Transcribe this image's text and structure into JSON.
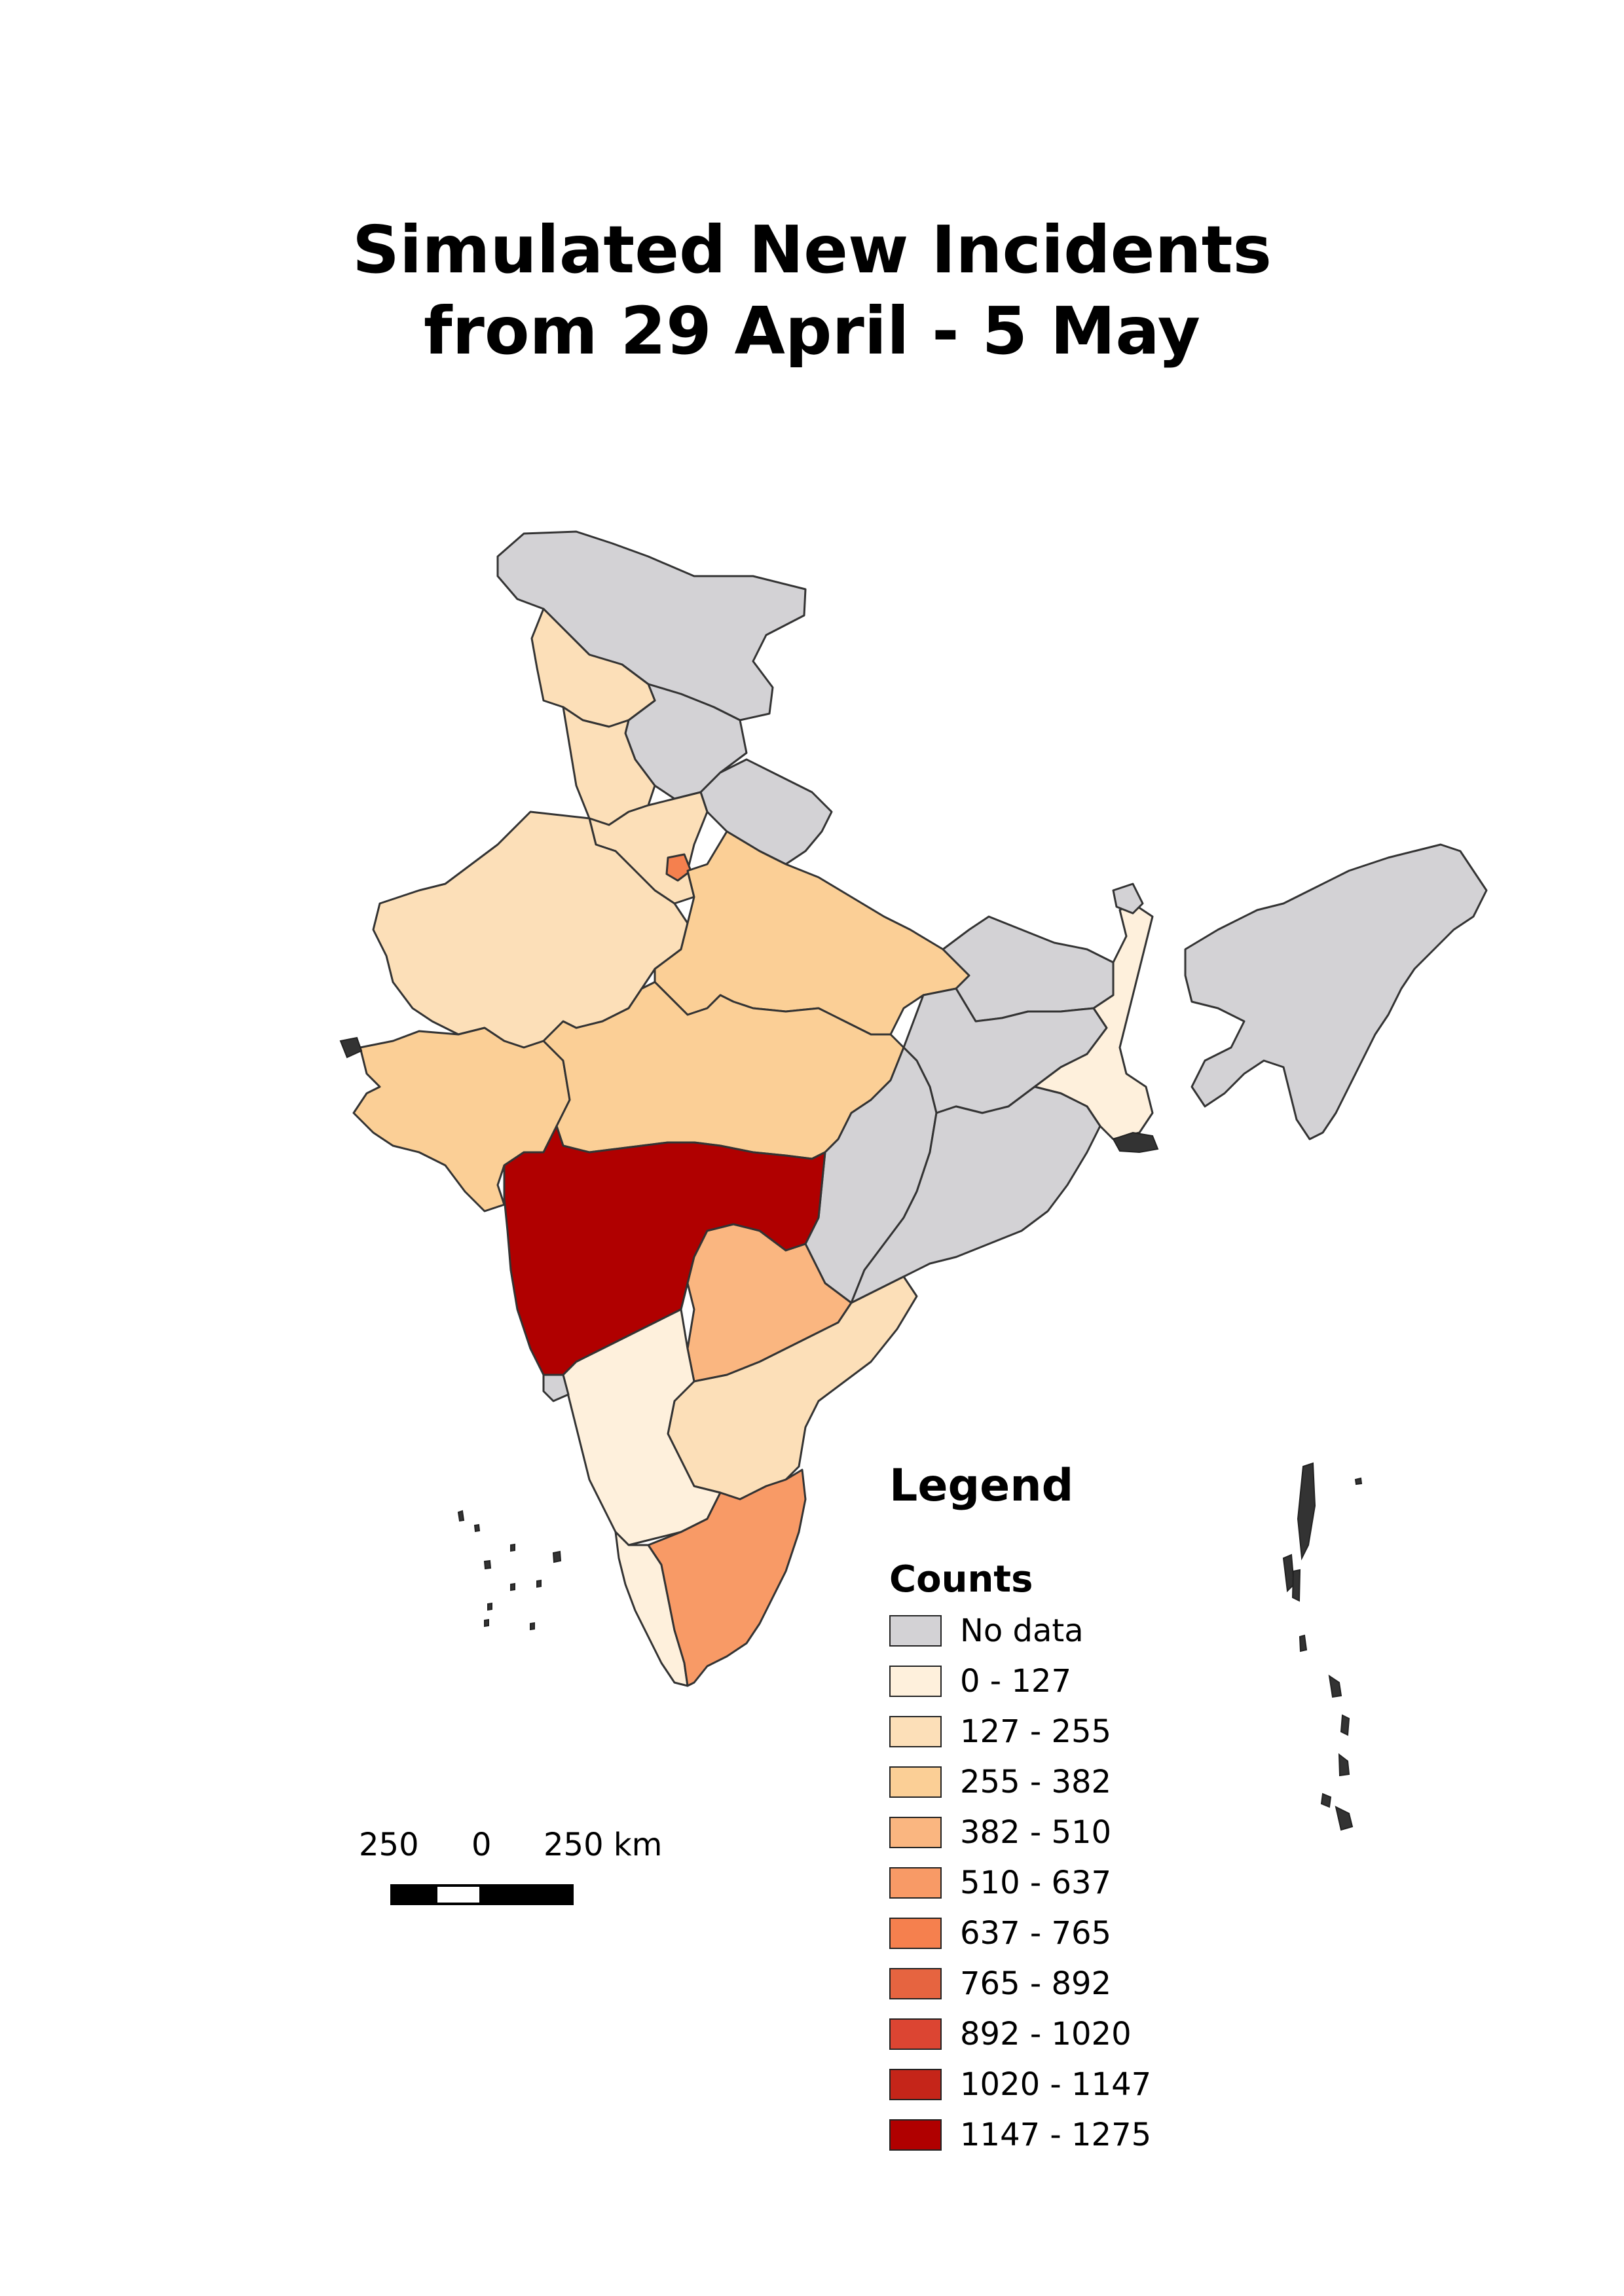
{
  "title": {
    "line1": "Simulated New Incidents",
    "line2": "from 29 April - 5 May"
  },
  "legend": {
    "title": "Legend",
    "subtitle": "Counts",
    "classes": [
      {
        "label": "No data",
        "color": "#d3d2d5"
      },
      {
        "label": "0 - 127",
        "color": "#fef0dc"
      },
      {
        "label": "127 - 255",
        "color": "#fcdfb8"
      },
      {
        "label": "255 - 382",
        "color": "#fbcf96"
      },
      {
        "label": "382 - 510",
        "color": "#fab680"
      },
      {
        "label": "510 - 637",
        "color": "#f89a66"
      },
      {
        "label": "637 - 765",
        "color": "#f5804e"
      },
      {
        "label": "765 - 892",
        "color": "#e66440"
      },
      {
        "label": "892 - 1020",
        "color": "#dc4532"
      },
      {
        "label": "1020 - 1147",
        "color": "#c52519"
      },
      {
        "label": "1147 - 1275",
        "color": "#b00000"
      }
    ]
  },
  "scalebar": {
    "left_label": "250",
    "mid_label": "0",
    "right_label": "250 km"
  },
  "regions": [
    {
      "name": "Jammu and Kashmir",
      "class": "No data"
    },
    {
      "name": "Himachal Pradesh",
      "class": "No data"
    },
    {
      "name": "Uttarakhand",
      "class": "No data"
    },
    {
      "name": "Ladakh north",
      "class": "127 - 255"
    },
    {
      "name": "Punjab",
      "class": "127 - 255"
    },
    {
      "name": "Haryana",
      "class": "127 - 255"
    },
    {
      "name": "Delhi",
      "class": "637 - 765"
    },
    {
      "name": "Rajasthan",
      "class": "127 - 255"
    },
    {
      "name": "Uttar Pradesh",
      "class": "255 - 382"
    },
    {
      "name": "Gujarat",
      "class": "255 - 382"
    },
    {
      "name": "Madhya Pradesh",
      "class": "255 - 382"
    },
    {
      "name": "Bihar",
      "class": "No data"
    },
    {
      "name": "Jharkhand",
      "class": "No data"
    },
    {
      "name": "West Bengal",
      "class": "0 - 127"
    },
    {
      "name": "Sikkim",
      "class": "No data"
    },
    {
      "name": "Northeast",
      "class": "No data"
    },
    {
      "name": "Chhattisgarh",
      "class": "No data"
    },
    {
      "name": "Odisha",
      "class": "No data"
    },
    {
      "name": "Maharashtra",
      "class": "1147 - 1275"
    },
    {
      "name": "Telangana",
      "class": "382 - 510"
    },
    {
      "name": "Andhra Pradesh",
      "class": "127 - 255"
    },
    {
      "name": "Karnataka",
      "class": "0 - 127"
    },
    {
      "name": "Goa",
      "class": "No data"
    },
    {
      "name": "Kerala",
      "class": "0 - 127"
    },
    {
      "name": "Tamil Nadu",
      "class": "510 - 637"
    }
  ]
}
